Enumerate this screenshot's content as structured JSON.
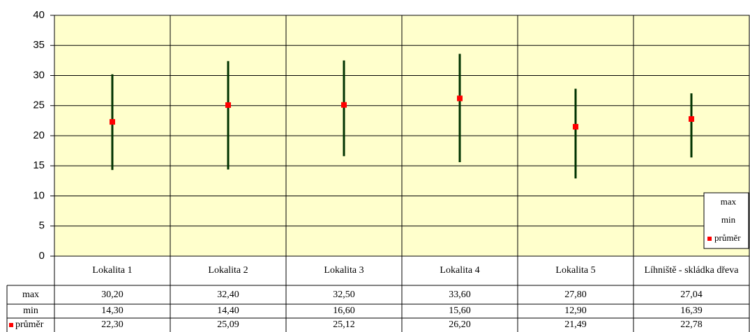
{
  "chart_data": {
    "type": "hilo",
    "categories": [
      "Lokalita 1",
      "Lokalita 2",
      "Lokalita 3",
      "Lokalita 4",
      "Lokalita 5",
      "Líhniště - skládka dřeva"
    ],
    "series": [
      {
        "name": "max",
        "color": "#003300",
        "values": [
          30.2,
          32.4,
          32.5,
          33.6,
          27.8,
          27.04
        ],
        "value_labels": [
          "30,20",
          "32,40",
          "32,50",
          "33,60",
          "27,80",
          "27,04"
        ]
      },
      {
        "name": "min",
        "color": "#003300",
        "values": [
          14.3,
          14.4,
          16.6,
          15.6,
          12.9,
          16.39
        ],
        "value_labels": [
          "14,30",
          "14,40",
          "16,60",
          "15,60",
          "12,90",
          "16,39"
        ]
      },
      {
        "name": "průměr",
        "color": "#ff0000",
        "values": [
          22.3,
          25.09,
          25.12,
          26.2,
          21.49,
          22.78
        ],
        "value_labels": [
          "22,30",
          "25,09",
          "25,12",
          "26,20",
          "21,49",
          "22,78"
        ]
      }
    ],
    "ylim": [
      0,
      40
    ],
    "yticks": [
      0,
      5,
      10,
      15,
      20,
      25,
      30,
      35,
      40
    ],
    "grid": true,
    "legend": "right",
    "plot_background": "#ffffcc"
  }
}
